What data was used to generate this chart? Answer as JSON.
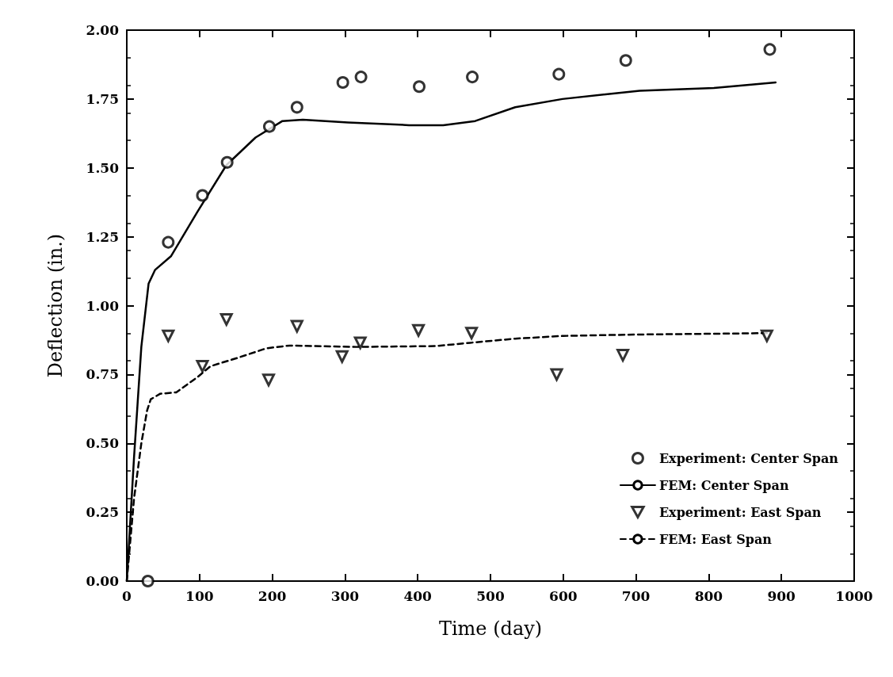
{
  "chart_data": {
    "type": "scatter",
    "xlabel": "Time (day)",
    "ylabel": "Deflection (in.)",
    "xlim": [
      0,
      1000
    ],
    "ylim": [
      0,
      2
    ],
    "xticks": [
      0,
      100,
      200,
      300,
      400,
      500,
      600,
      700,
      800,
      900,
      1000
    ],
    "yticks": [
      {
        "value": 0,
        "label": "0.00"
      },
      {
        "value": 0.25,
        "label": "0.25"
      },
      {
        "value": 0.5,
        "label": "0.50"
      },
      {
        "value": 0.75,
        "label": "0.75"
      },
      {
        "value": 1,
        "label": "1.00"
      },
      {
        "value": 1.25,
        "label": "1.25"
      },
      {
        "value": 1.5,
        "label": "1.50"
      },
      {
        "value": 1.75,
        "label": "1.75"
      },
      {
        "value": 2,
        "label": "2.00"
      }
    ],
    "grid": false,
    "legend": "bottom right",
    "series": [
      {
        "name": "Experiment: Center Span",
        "marker": "circle",
        "color": "#000000",
        "x": [
          29,
          57,
          104,
          138,
          196,
          234,
          297,
          322,
          402,
          475,
          594,
          686,
          884
        ],
        "values": [
          0,
          1.23,
          1.4,
          1.52,
          1.65,
          1.72,
          1.81,
          1.83,
          1.795,
          1.83,
          1.84,
          1.89,
          1.93
        ]
      },
      {
        "name": "FEM: Center Span",
        "type": "line",
        "marker": "none",
        "line_style": "solid",
        "color": "#000000",
        "x": [
          0,
          10,
          20,
          30,
          39,
          61,
          97,
          137,
          177,
          214,
          242,
          304,
          388,
          435,
          479,
          534,
          599,
          705,
          807,
          892
        ],
        "values": [
          0,
          0.45,
          0.85,
          1.08,
          1.13,
          1.18,
          1.34,
          1.51,
          1.61,
          1.67,
          1.675,
          1.665,
          1.655,
          1.655,
          1.67,
          1.72,
          1.75,
          1.78,
          1.79,
          1.81
        ]
      },
      {
        "name": "Experiment: East Span",
        "marker": "triangle",
        "color": "#000000",
        "x": [
          57,
          104,
          137,
          195,
          234,
          296,
          321,
          401,
          474,
          591,
          682,
          880
        ],
        "values": [
          0.89,
          0.78,
          0.95,
          0.73,
          0.925,
          0.815,
          0.865,
          0.91,
          0.9,
          0.75,
          0.82,
          0.89
        ]
      },
      {
        "name": "FEM: East Span",
        "type": "line",
        "marker": "none",
        "line_style": "dashed",
        "color": "#000000",
        "x": [
          0,
          10,
          20,
          28,
          33,
          46,
          68,
          97,
          115,
          152,
          192,
          224,
          316,
          425,
          472,
          534,
          600,
          700,
          880
        ],
        "values": [
          0,
          0.3,
          0.5,
          0.62,
          0.66,
          0.68,
          0.685,
          0.74,
          0.78,
          0.81,
          0.845,
          0.855,
          0.85,
          0.853,
          0.865,
          0.88,
          0.89,
          0.895,
          0.9
        ]
      }
    ]
  }
}
